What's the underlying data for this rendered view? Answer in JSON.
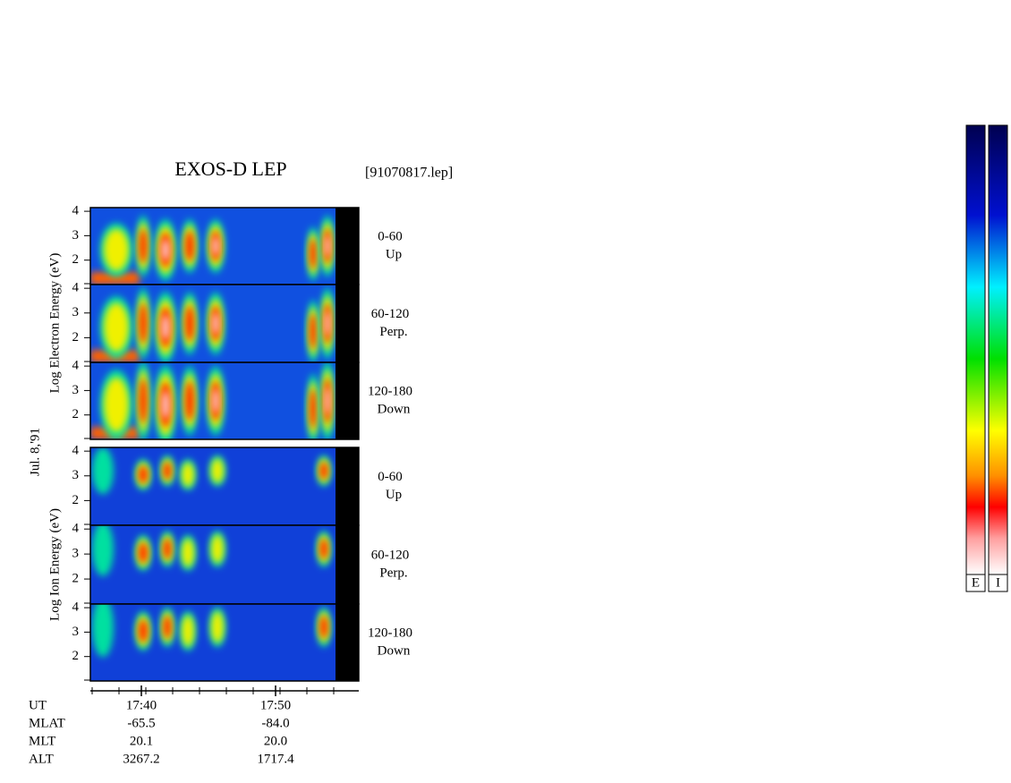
{
  "header": {
    "title": "EXOS-D LEP",
    "file": "[91070817.lep]",
    "date": "Jul. 8,'91"
  },
  "axes": {
    "electron_label": "Log Electron Energy (eV)",
    "ion_label": "Log Ion Energy (eV)",
    "ylim": [
      1,
      4.15
    ],
    "yticks": [
      2,
      3,
      4
    ]
  },
  "panels": [
    {
      "angle": "0-60",
      "direction": "Up"
    },
    {
      "angle": "60-120",
      "direction": "Perp."
    },
    {
      "angle": "120-180",
      "direction": "Down"
    },
    {
      "angle": "0-60",
      "direction": "Up"
    },
    {
      "angle": "60-120",
      "direction": "Perp."
    },
    {
      "angle": "120-180",
      "direction": "Down"
    }
  ],
  "time_axis": {
    "xlim": [
      36.2,
      56.2
    ],
    "xticks": [
      {
        "value": 40,
        "label": "17:40"
      },
      {
        "value": 50,
        "label": "17:50"
      }
    ]
  },
  "ephemeris": {
    "ut_label": "UT",
    "rows": [
      {
        "name": "MLAT",
        "values": [
          "-65.5",
          "-84.0"
        ]
      },
      {
        "name": "MLT",
        "values": [
          "20.1",
          "20.0"
        ]
      },
      {
        "name": "ALT",
        "values": [
          "3267.2",
          "1717.4"
        ]
      }
    ]
  },
  "colorbar": {
    "labels": [
      "E",
      "I"
    ]
  }
}
